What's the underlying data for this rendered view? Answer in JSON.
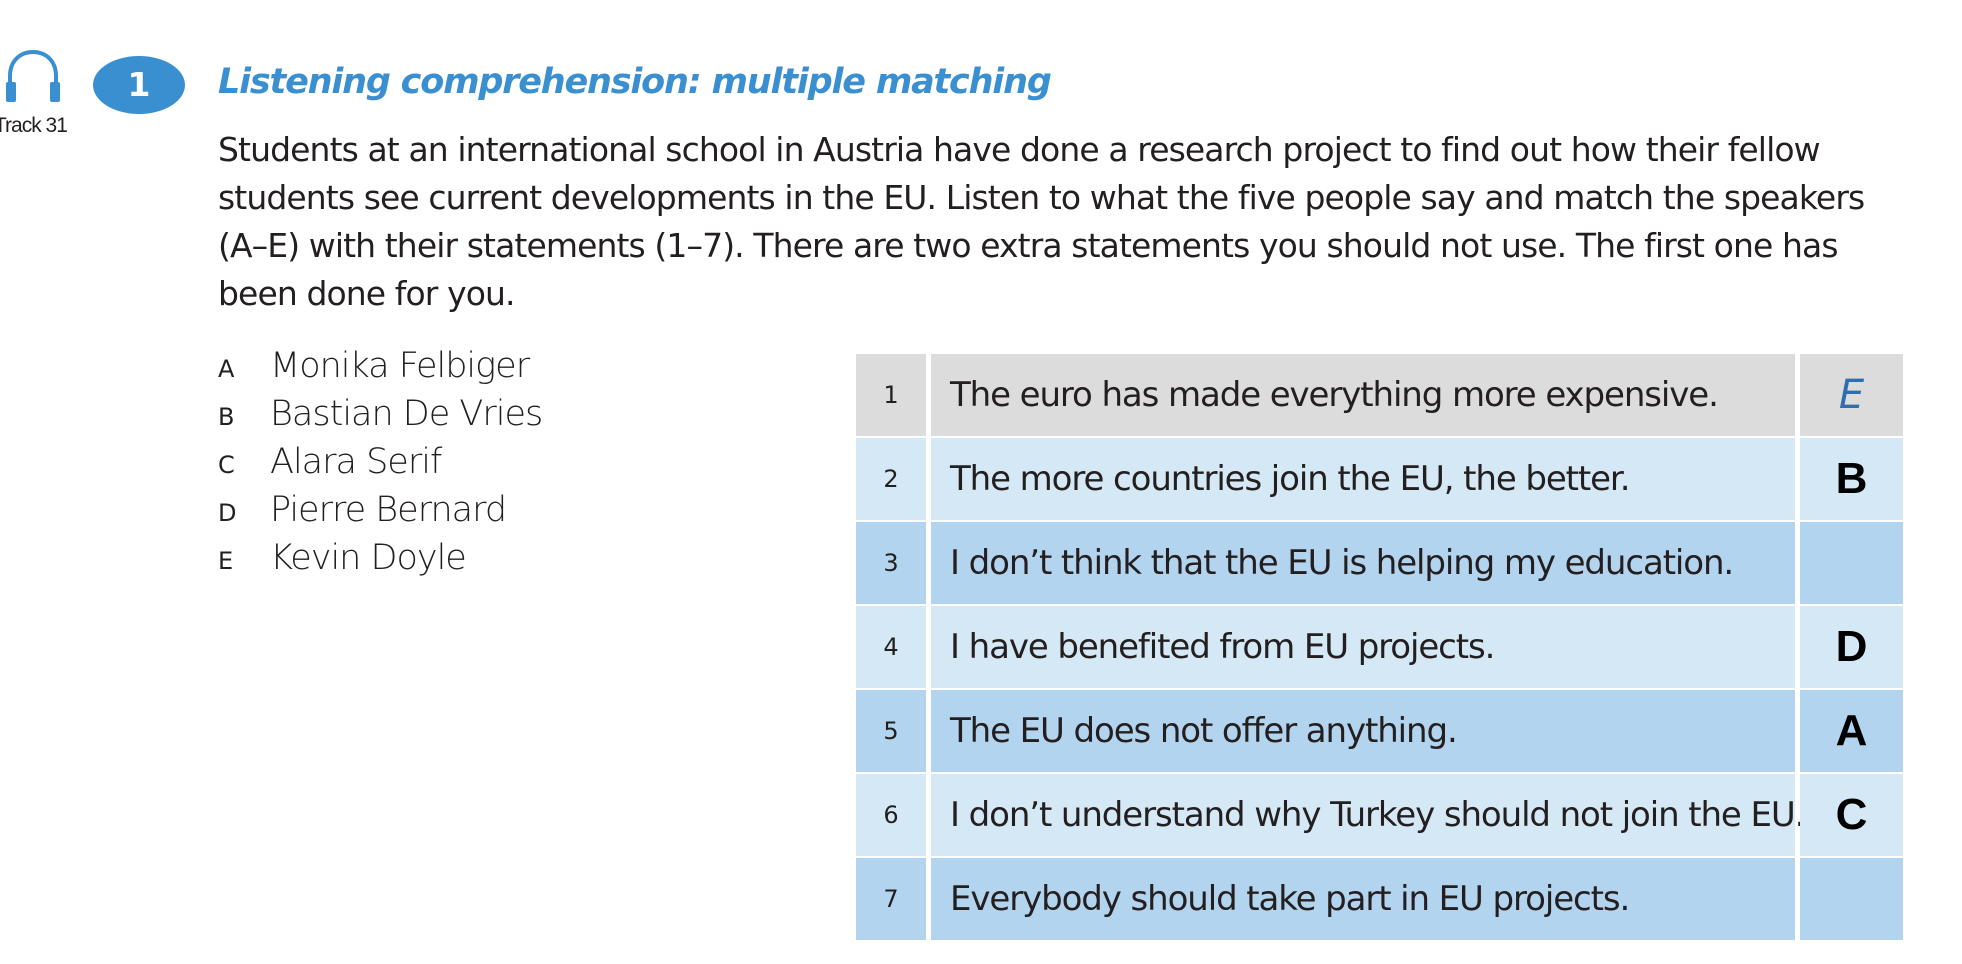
{
  "colors": {
    "accent": "#3a8fd0",
    "row_example": "#dcdcdc",
    "row_light": "#d5e8f6",
    "row_dark": "#b3d4ee",
    "example_answer": "#2f6fb0"
  },
  "track": {
    "icon": "headphones-icon",
    "label": "Track 31"
  },
  "exercise": {
    "number": "1",
    "title": "Listening comprehension: multiple matching",
    "instructions": "Students at an international school in Austria have done a research project to find out how their fellow students see current developments in the EU. Listen to what the five people say and match the speakers (A–E) with their statements (1–7). There are two extra statements you should not use. The first one has been done for you."
  },
  "speakers": [
    {
      "letter": "A",
      "name": "Monika Felbiger"
    },
    {
      "letter": "B",
      "name": "Bastian De Vries"
    },
    {
      "letter": "C",
      "name": "Alara Serif"
    },
    {
      "letter": "D",
      "name": "Pierre Bernard"
    },
    {
      "letter": "E",
      "name": "Kevin Doyle"
    }
  ],
  "statements": [
    {
      "number": "1",
      "text": "The euro has made everything more expensive.",
      "answer": "E",
      "style": "example"
    },
    {
      "number": "2",
      "text": "The more countries join the EU, the better.",
      "answer": "B",
      "style": "light"
    },
    {
      "number": "3",
      "text": "I don’t think that the EU is helping my education.",
      "answer": "",
      "style": "dark"
    },
    {
      "number": "4",
      "text": "I have benefited from EU projects.",
      "answer": "D",
      "style": "light"
    },
    {
      "number": "5",
      "text": "The EU does not offer anything.",
      "answer": "A",
      "style": "dark"
    },
    {
      "number": "6",
      "text": "I don’t understand why Turkey should not join the EU.",
      "answer": "C",
      "style": "light"
    },
    {
      "number": "7",
      "text": "Everybody should take part in EU projects.",
      "answer": "",
      "style": "dark"
    }
  ]
}
